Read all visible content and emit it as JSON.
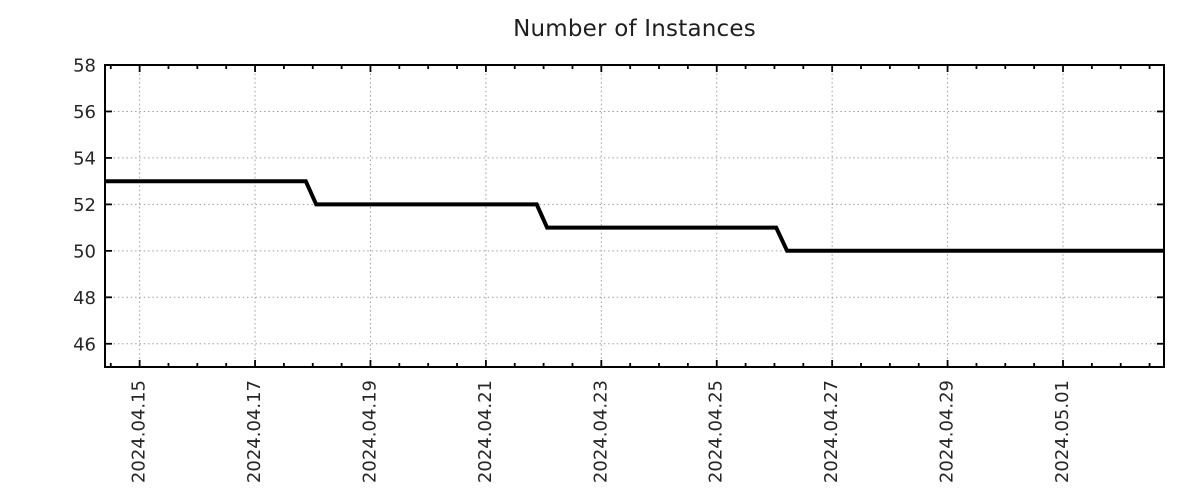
{
  "page": {
    "background": "#ffffff"
  },
  "chart_data": {
    "type": "line",
    "title": "Number of Instances",
    "legend": "none",
    "grid": "dotted",
    "style": "step line with short slanted transitions, thick black stroke",
    "colors": {
      "line": "#000000",
      "grid": "#9e9e9e",
      "axis": "#000000",
      "text": "#262626",
      "background": "#ffffff"
    },
    "x_axis": {
      "unit": "date",
      "note": "x values below are days after 2024-04-15 00:00",
      "range": [
        -0.6,
        17.75
      ],
      "major_tick_positions": [
        0,
        2,
        4,
        6,
        8,
        10,
        12,
        14,
        16
      ],
      "major_tick_labels": [
        "2024.04.15",
        "2024.04.17",
        "2024.04.19",
        "2024.04.21",
        "2024.04.23",
        "2024.04.25",
        "2024.04.27",
        "2024.04.29",
        "2024.05.01"
      ],
      "minor_tick_interval": 0.5,
      "label_rotation_deg": -90
    },
    "y_axis": {
      "range": [
        45,
        58
      ],
      "major_tick_positions": [
        46,
        48,
        50,
        52,
        54,
        56,
        58
      ],
      "major_tick_labels": [
        "46",
        "48",
        "50",
        "52",
        "54",
        "56",
        "58"
      ]
    },
    "series": [
      {
        "name": "Number of Instances",
        "step_levels": [
          {
            "value": 53,
            "from": "plot start (~2024.04.14)",
            "to": "~2024.04.17 21:00"
          },
          {
            "value": 52,
            "from": "~2024.04.18 01:30",
            "to": "~2024.04.21 21:00"
          },
          {
            "value": 51,
            "from": "~2024.04.22 01:30",
            "to": "~2024.04.26 00:45"
          },
          {
            "value": 50,
            "from": "~2024.04.26 05:00",
            "to": "plot end (~2024.05.02)"
          }
        ],
        "points": [
          {
            "x": -0.6,
            "y": 53
          },
          {
            "x": 2.88,
            "y": 53
          },
          {
            "x": 3.06,
            "y": 52
          },
          {
            "x": 6.88,
            "y": 52
          },
          {
            "x": 7.06,
            "y": 51
          },
          {
            "x": 11.03,
            "y": 51
          },
          {
            "x": 11.22,
            "y": 50
          },
          {
            "x": 17.75,
            "y": 50
          }
        ]
      }
    ]
  }
}
